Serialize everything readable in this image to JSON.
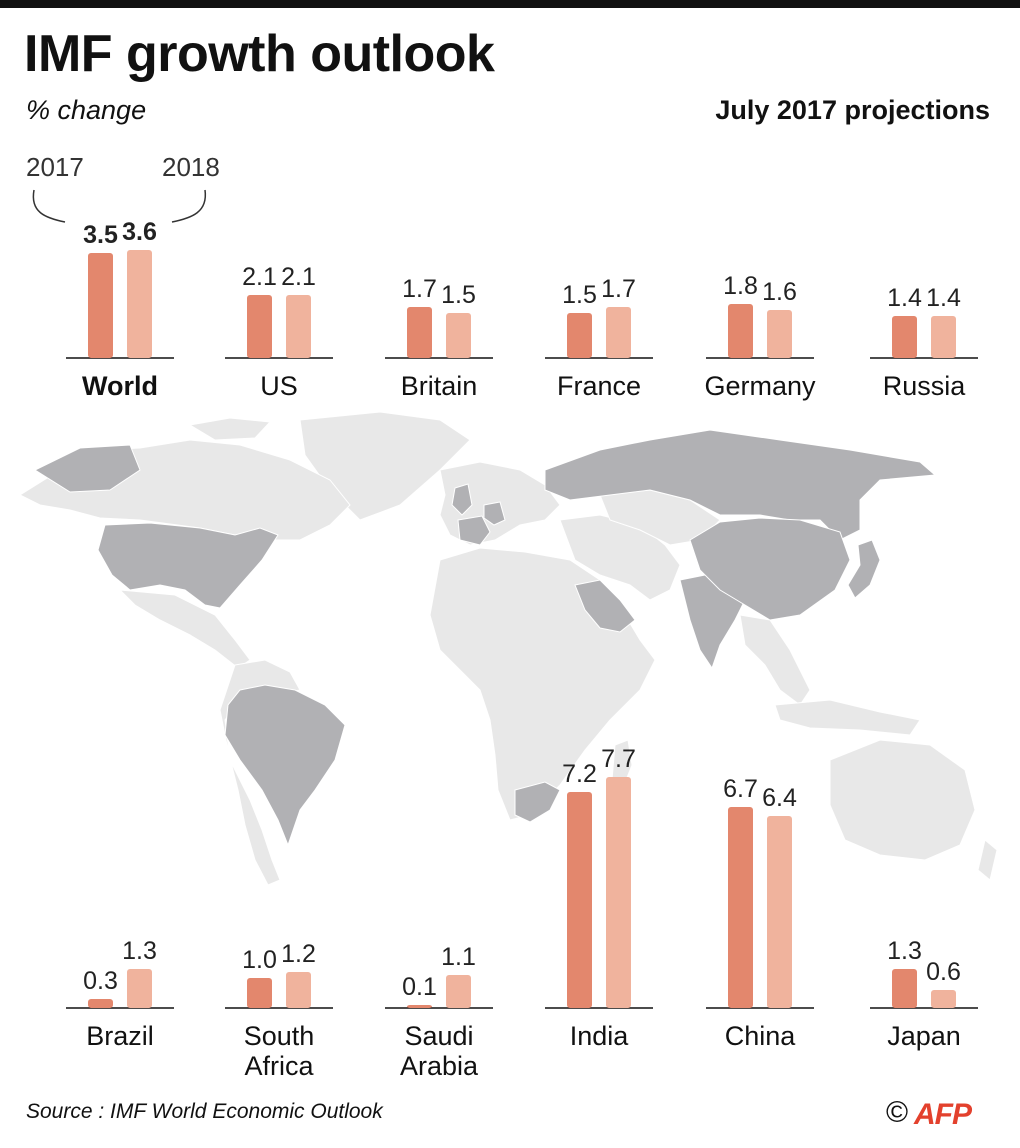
{
  "header": {
    "title": "IMF growth outlook",
    "subtitle": "% change",
    "projections": "July 2017 projections",
    "legend_year_1": "2017",
    "legend_year_2": "2018"
  },
  "footer": {
    "source": "Source : IMF World Economic Outlook",
    "copyright": "©",
    "logo_text": "AFP"
  },
  "colors": {
    "bar_2017": "#e3876d",
    "bar_2018": "#f0b39d",
    "highlighted_country": "#b1b1b4",
    "other_land": "#e8e8e8",
    "baseline": "#111111",
    "brand": "#e3412d"
  },
  "chart_data": {
    "type": "bar",
    "title": "IMF growth outlook",
    "subtitle": "% change",
    "note": "July 2017 projections",
    "series_names": [
      "2017",
      "2018"
    ],
    "unit": "% change",
    "groups": [
      {
        "name": "World",
        "values": [
          3.5,
          3.6
        ],
        "bold": true
      },
      {
        "name": "US",
        "values": [
          2.1,
          2.1
        ]
      },
      {
        "name": "Britain",
        "values": [
          1.7,
          1.5
        ]
      },
      {
        "name": "France",
        "values": [
          1.5,
          1.7
        ]
      },
      {
        "name": "Germany",
        "values": [
          1.8,
          1.6
        ]
      },
      {
        "name": "Russia",
        "values": [
          1.4,
          1.4
        ]
      },
      {
        "name": "Brazil",
        "values": [
          0.3,
          1.3
        ]
      },
      {
        "name": "South Africa",
        "name_lines": [
          "South",
          "Africa"
        ],
        "values": [
          1.0,
          1.2
        ]
      },
      {
        "name": "Saudi Arabia",
        "name_lines": [
          "Saudi",
          "Arabia"
        ],
        "values": [
          0.1,
          1.1
        ]
      },
      {
        "name": "India",
        "values": [
          7.2,
          7.7
        ]
      },
      {
        "name": "China",
        "values": [
          6.7,
          6.4
        ]
      },
      {
        "name": "Japan",
        "values": [
          1.3,
          0.6
        ]
      }
    ],
    "value_labels": [
      [
        "3.5",
        "3.6"
      ],
      [
        "2.1",
        "2.1"
      ],
      [
        "1.7",
        "1.5"
      ],
      [
        "1.5",
        "1.7"
      ],
      [
        "1.8",
        "1.6"
      ],
      [
        "1.4",
        "1.4"
      ],
      [
        "0.3",
        "1.3"
      ],
      [
        "1.0",
        "1.2"
      ],
      [
        "0.1",
        "1.1"
      ],
      [
        "7.2",
        "7.7"
      ],
      [
        "6.7",
        "6.4"
      ],
      [
        "1.3",
        "0.6"
      ]
    ],
    "grid": false
  }
}
